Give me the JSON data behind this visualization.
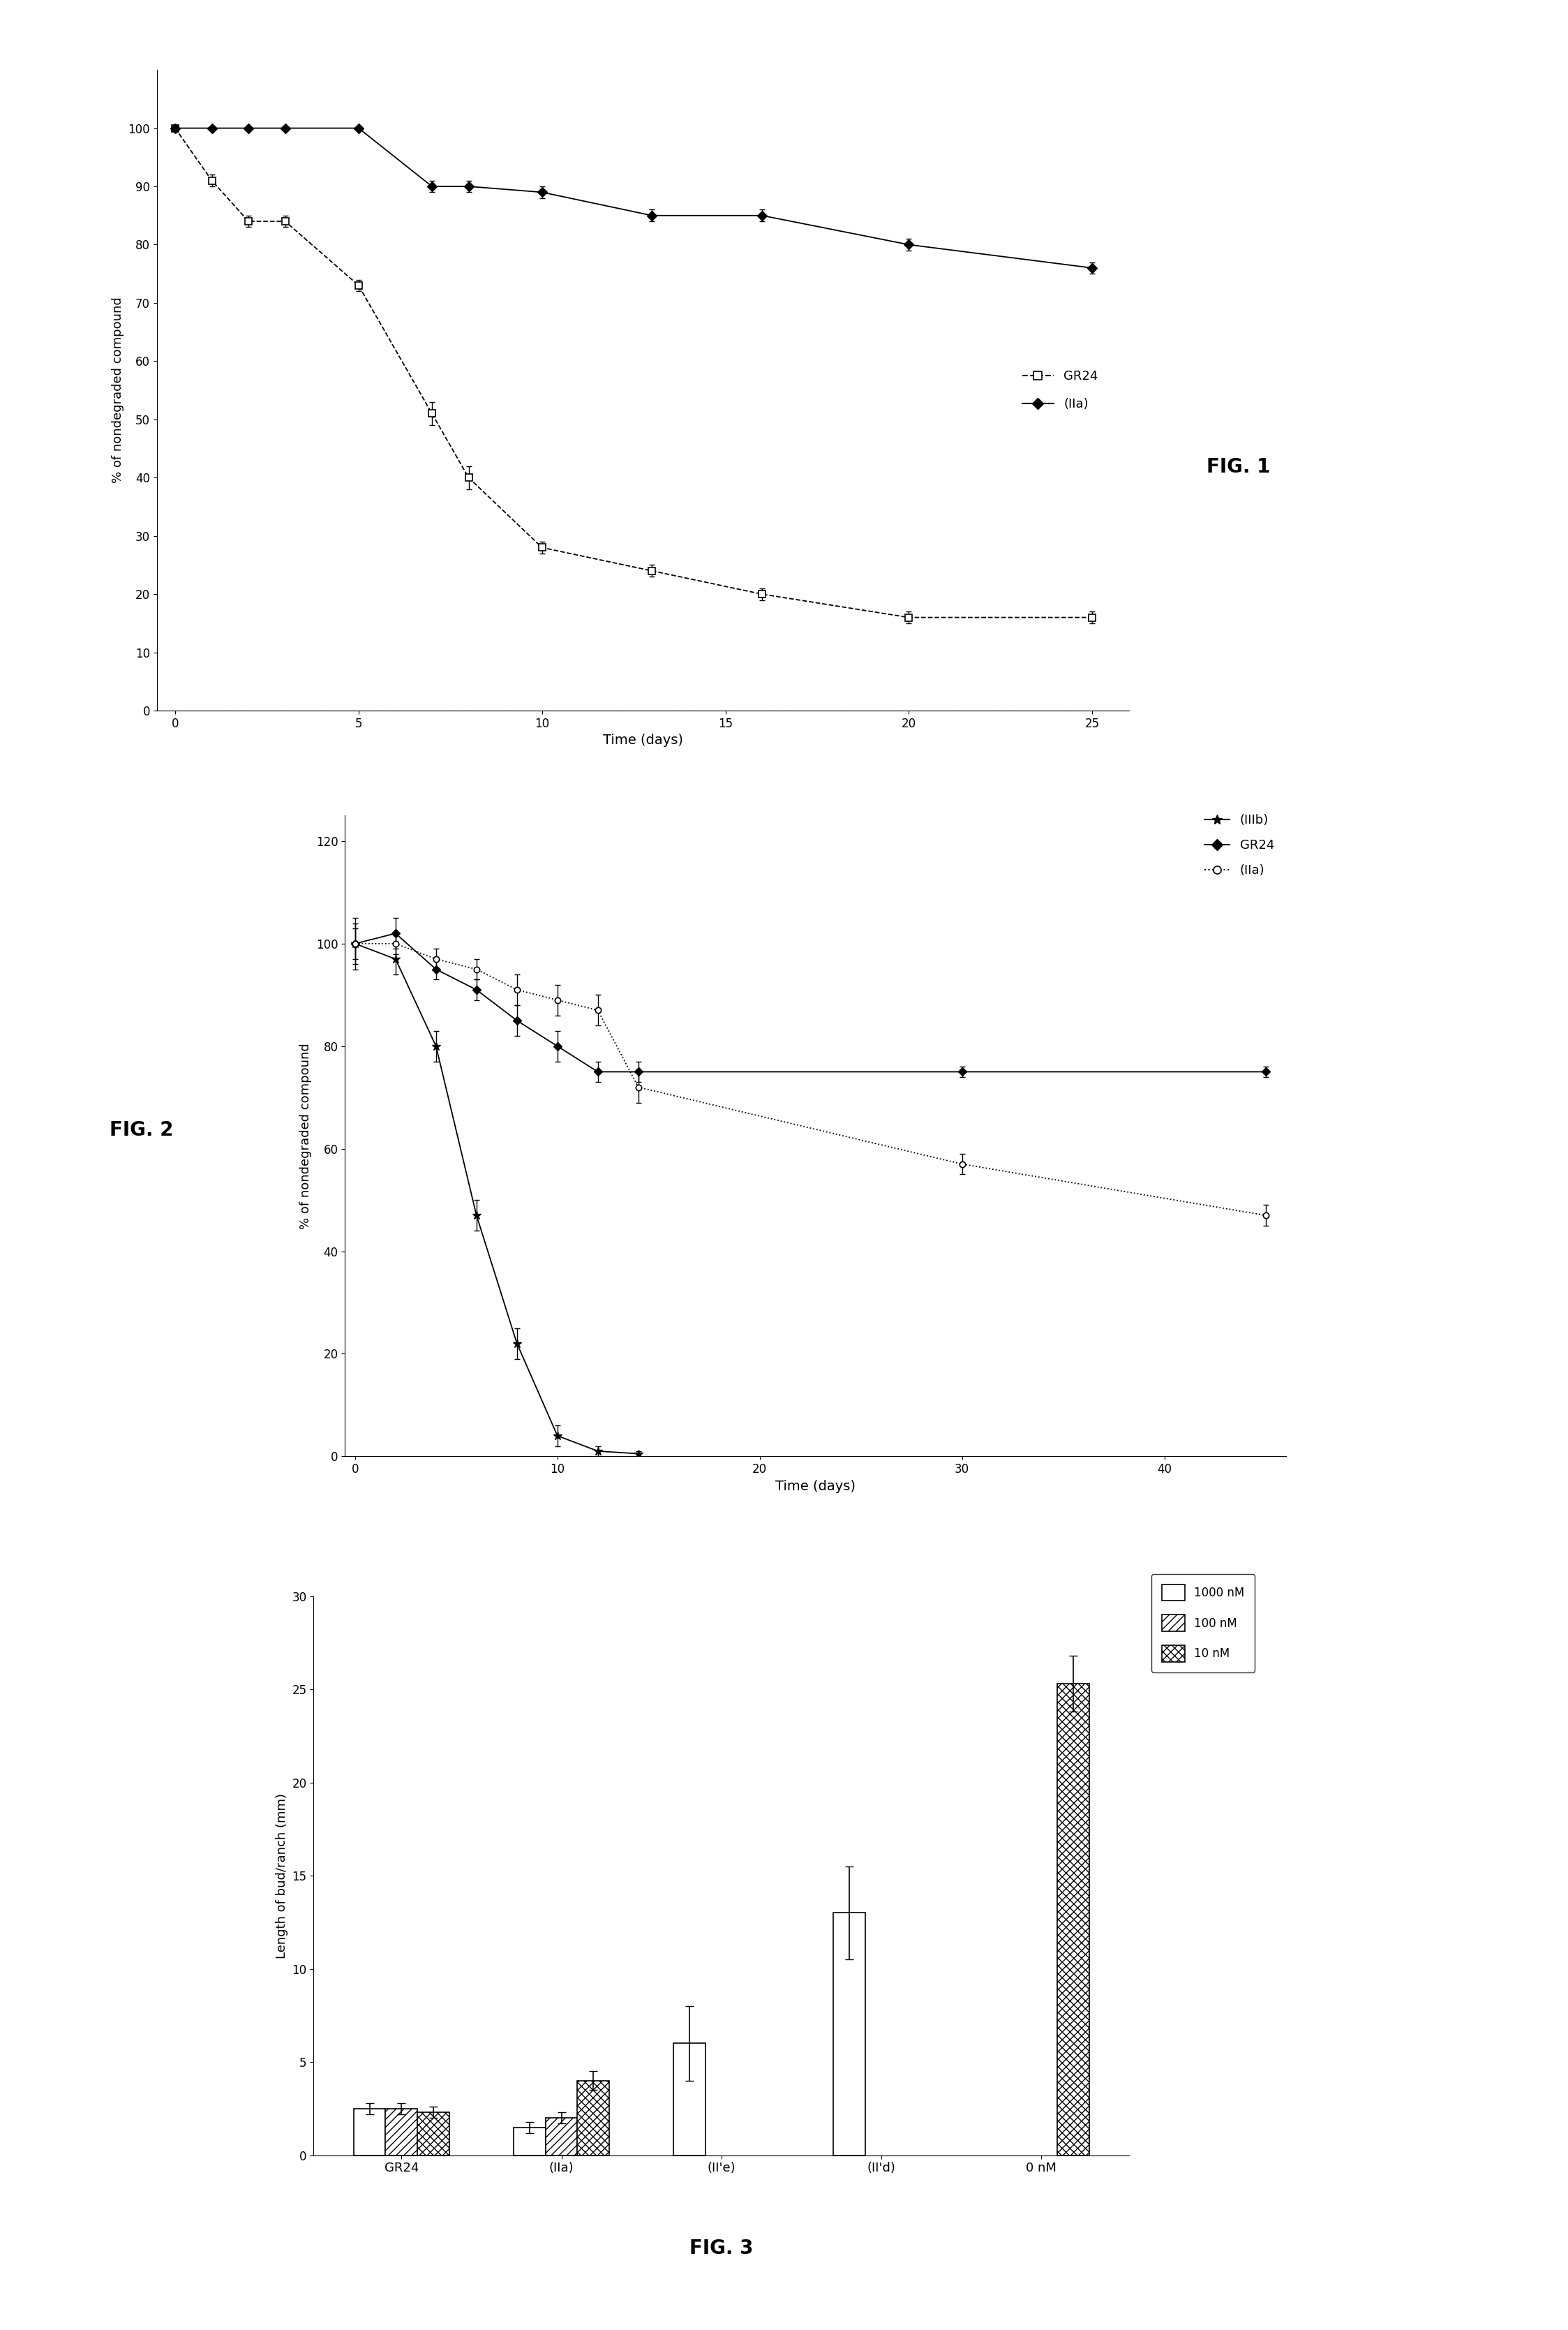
{
  "fig1": {
    "xlabel": "Time (days)",
    "ylabel": "% of nondegraded compound",
    "ylim": [
      0,
      110
    ],
    "xlim": [
      -0.5,
      26
    ],
    "yticks": [
      0,
      10,
      20,
      30,
      40,
      50,
      60,
      70,
      80,
      90,
      100
    ],
    "xticks": [
      0,
      5,
      10,
      15,
      20,
      25
    ],
    "GR24_x": [
      0,
      1,
      2,
      3,
      5,
      7,
      8,
      10,
      13,
      16,
      20,
      25
    ],
    "GR24_y": [
      100,
      91,
      84,
      84,
      73,
      51,
      40,
      28,
      24,
      20,
      16,
      16
    ],
    "GR24_err": [
      0,
      1,
      1,
      1,
      1,
      2,
      2,
      1,
      1,
      1,
      1,
      1
    ],
    "IIa_x": [
      0,
      1,
      2,
      3,
      5,
      7,
      8,
      10,
      13,
      16,
      20,
      25
    ],
    "IIa_y": [
      100,
      100,
      100,
      100,
      100,
      90,
      90,
      89,
      85,
      85,
      80,
      76
    ],
    "IIa_err": [
      0,
      0,
      0,
      0,
      0,
      1,
      1,
      1,
      1,
      1,
      1,
      1
    ],
    "legend_GR24": "GR24",
    "legend_IIa": "(IIa)",
    "fig_label": "FIG. 1"
  },
  "fig2": {
    "xlabel": "Time (days)",
    "ylabel": "% of nondegraded compound",
    "ylim": [
      0,
      125
    ],
    "xlim": [
      -0.5,
      46
    ],
    "yticks": [
      0,
      20,
      40,
      60,
      80,
      100,
      120
    ],
    "xticks": [
      0,
      10,
      20,
      30,
      40
    ],
    "IIIb_x": [
      0,
      2,
      4,
      6,
      8,
      10,
      12,
      14
    ],
    "IIIb_y": [
      100,
      97,
      80,
      47,
      22,
      4,
      1,
      0.5
    ],
    "IIIb_err": [
      5,
      3,
      3,
      3,
      3,
      2,
      1,
      0.5
    ],
    "GR24_x": [
      0,
      2,
      4,
      6,
      8,
      10,
      12,
      14,
      30,
      45
    ],
    "GR24_y": [
      100,
      102,
      95,
      91,
      85,
      80,
      75,
      75,
      75,
      75
    ],
    "GR24_err": [
      4,
      3,
      2,
      2,
      3,
      3,
      2,
      2,
      1,
      1
    ],
    "IIa_x": [
      0,
      2,
      4,
      6,
      8,
      10,
      12,
      14,
      30,
      45
    ],
    "IIa_y": [
      100,
      100,
      97,
      95,
      91,
      89,
      87,
      72,
      57,
      47
    ],
    "IIa_err": [
      3,
      2,
      2,
      2,
      3,
      3,
      3,
      3,
      2,
      2
    ],
    "legend_IIIb": "(IIIb)",
    "legend_GR24": "GR24",
    "legend_IIa": "(IIa)",
    "fig_label": "FIG. 2"
  },
  "fig3": {
    "ylabel": "Length of bud/ranch (mm)",
    "ylim": [
      0,
      30
    ],
    "yticks": [
      0,
      5,
      10,
      15,
      20,
      25,
      30
    ],
    "categories": [
      "GR24",
      "(IIa)",
      "(II'e)",
      "(II'd)",
      "0 nM"
    ],
    "val_1000nM": [
      2.5,
      1.5,
      6.0,
      13.0,
      null
    ],
    "val_100nM": [
      2.5,
      2.0,
      null,
      null,
      null
    ],
    "val_10nM": [
      2.3,
      4.0,
      null,
      null,
      25.3
    ],
    "err_1000nM": [
      0.3,
      0.3,
      2.0,
      2.5,
      null
    ],
    "err_100nM": [
      0.3,
      0.3,
      null,
      null,
      null
    ],
    "err_10nM": [
      0.3,
      0.5,
      null,
      null,
      1.5
    ],
    "fig_label": "FIG. 3",
    "legend_1000": "1000 nM",
    "legend_100": "100 nM",
    "legend_10": "10 nM"
  }
}
